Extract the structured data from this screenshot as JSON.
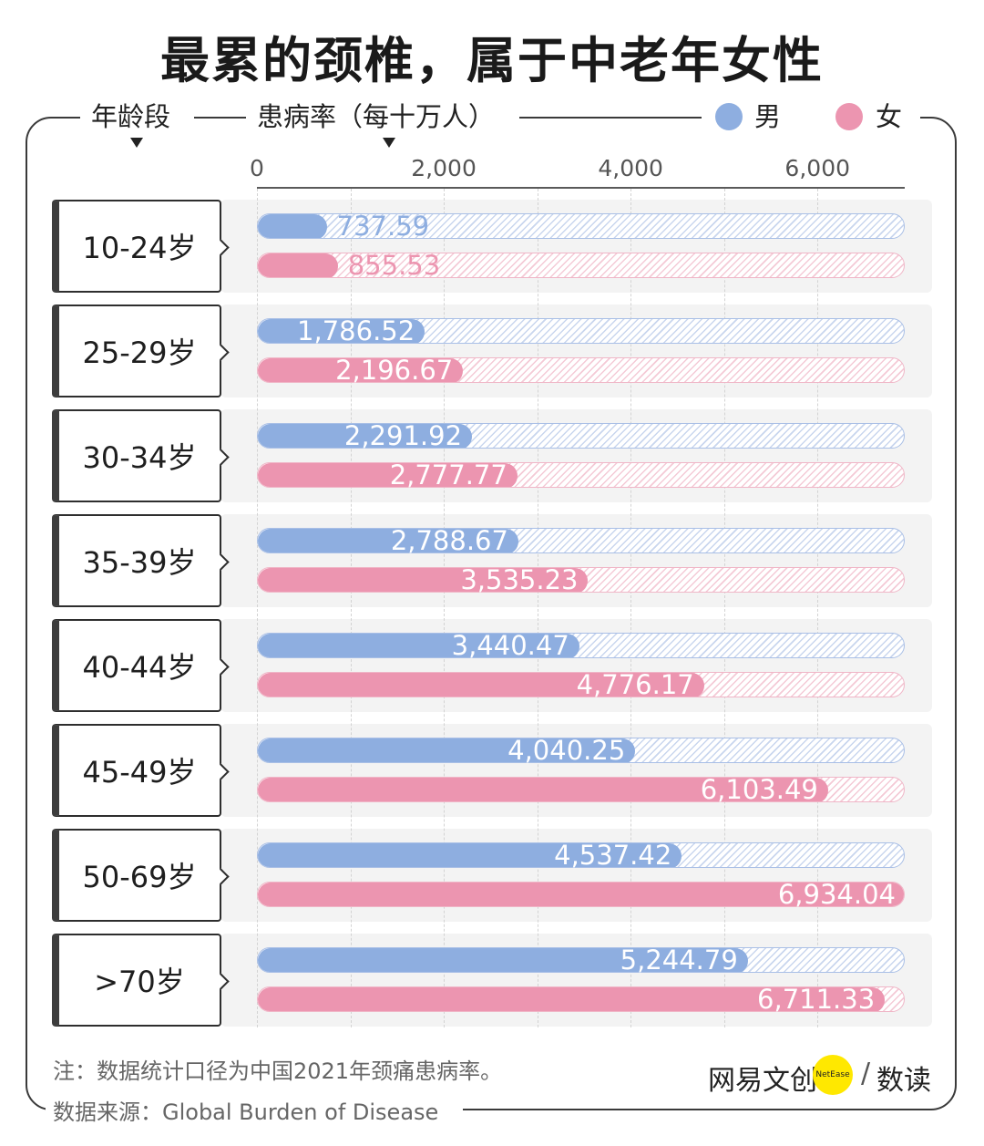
{
  "title": "最累的颈椎，属于中老年女性",
  "header": {
    "age_label": "年龄段",
    "rate_label": "患病率（每十万人）",
    "legend": [
      {
        "key": "male",
        "name": "男",
        "color": "#8eaee0"
      },
      {
        "key": "female",
        "name": "女",
        "color": "#ec95b0"
      }
    ]
  },
  "chart_data": {
    "type": "bar",
    "orientation": "horizontal",
    "categories": [
      "10-24岁",
      "25-29岁",
      "30-34岁",
      "35-39岁",
      "40-44岁",
      "45-49岁",
      "50-69岁",
      ">70岁"
    ],
    "series": [
      {
        "name": "男",
        "color": "#8eaee0",
        "values": [
          737.59,
          1786.52,
          2291.92,
          2788.67,
          3440.47,
          4040.25,
          4537.42,
          5244.79
        ]
      },
      {
        "name": "女",
        "color": "#ec95b0",
        "values": [
          855.53,
          2196.67,
          2777.77,
          3535.23,
          4776.17,
          6103.49,
          6934.04,
          6711.33
        ]
      }
    ],
    "xlim": [
      0,
      6934.04
    ],
    "xticks": [
      0,
      2000,
      4000,
      6000
    ],
    "xtick_labels": [
      "0",
      "2,000",
      "4,000",
      "6,000"
    ],
    "xlabel": "患病率（每十万人）",
    "ylabel": "年龄段",
    "grid": true,
    "legend_position": "top-right",
    "value_labels": true
  },
  "footer": {
    "note": "注：数据统计口径为中国2021年颈痛患病率。",
    "source": "数据来源：Global Burden of Disease",
    "brand_name": "网易文创",
    "brand_badge": "NetEase",
    "brand_sub": "数读"
  }
}
